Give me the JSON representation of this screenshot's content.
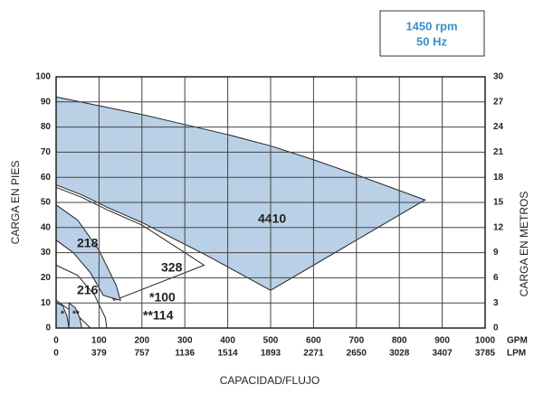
{
  "chart_data": {
    "type": "area",
    "badge": [
      "1450 rpm",
      "50 Hz"
    ],
    "ylabel": "CARGA EN PIES",
    "y2label": "CARGA EN METROS",
    "xlabel": "CAPACIDAD/FLUJO",
    "xunit": "GPM",
    "x2unit": "LPM",
    "xlim": [
      0,
      1000
    ],
    "xticks": [
      0,
      100,
      200,
      300,
      400,
      500,
      600,
      700,
      800,
      900,
      1000
    ],
    "x2ticks": [
      0,
      379,
      757,
      1136,
      1514,
      1893,
      2271,
      2650,
      3028,
      3407,
      3785
    ],
    "ylim": [
      0,
      100
    ],
    "yticks": [
      0,
      10,
      20,
      30,
      40,
      50,
      60,
      70,
      80,
      90,
      100
    ],
    "y2lim": [
      0,
      30
    ],
    "y2ticks": [
      0,
      3,
      6,
      9,
      12,
      15,
      18,
      21,
      24,
      27,
      30
    ],
    "grid": true,
    "series": [
      {
        "name": "4410",
        "color": "#b9d0e6",
        "x": [
          0,
          100,
          200,
          300,
          400,
          500,
          600,
          700,
          860,
          500,
          350,
          200,
          120,
          60,
          0
        ],
        "y": [
          92,
          88.5,
          85,
          81,
          77,
          72.5,
          67,
          61,
          51,
          15,
          29,
          42,
          48,
          53,
          57
        ]
      },
      {
        "name": "328",
        "color": "#ffffff",
        "x": [
          0,
          60,
          120,
          200,
          300,
          345,
          135,
          100,
          60,
          20,
          0
        ],
        "y": [
          56,
          52,
          47,
          41,
          30,
          25,
          11,
          20,
          30,
          38,
          42
        ]
      },
      {
        "name": "218",
        "color": "#b9d0e6",
        "x": [
          0,
          50,
          100,
          140,
          150,
          110,
          80,
          40,
          0
        ],
        "y": [
          49,
          43,
          31,
          17,
          11,
          13,
          22,
          30,
          35
        ]
      },
      {
        "name": "216",
        "color": "#ffffff",
        "x": [
          0,
          50,
          90,
          115,
          118,
          80,
          50,
          0
        ],
        "y": [
          25,
          21,
          13,
          4,
          0,
          0,
          5,
          11
        ]
      },
      {
        "name": "*",
        "color": "#b9d0e6",
        "x": [
          0,
          15,
          25,
          30,
          0
        ],
        "y": [
          10,
          9,
          5,
          0,
          0
        ]
      },
      {
        "name": "**",
        "color": "#b9d0e6",
        "x": [
          30,
          45,
          55,
          60,
          30
        ],
        "y": [
          10,
          8,
          4,
          0,
          0
        ]
      }
    ],
    "annotations": [
      "*100",
      "**114"
    ]
  }
}
